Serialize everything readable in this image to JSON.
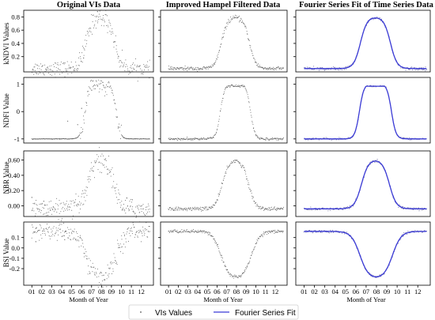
{
  "chart_data": {
    "type": "scatter",
    "title": "",
    "column_titles": [
      "Original VIs Data",
      "Improved Hampel Filtered Data",
      "Fourier Series Fit of Time Series Data"
    ],
    "xlabel": "Month of Year",
    "x_ticks": [
      "01",
      "02",
      "03",
      "04",
      "05",
      "06",
      "07",
      "08",
      "09",
      "10",
      "11",
      "12"
    ],
    "xlim": [
      0.5,
      12.9
    ],
    "rows": [
      {
        "name": "kNDVI",
        "ylabel": "kNDVI Values",
        "ylim": [
          -0.03,
          0.9
        ],
        "yticks": [
          {
            "v": 0.2,
            "label": "0.2"
          },
          {
            "v": 0.4,
            "label": "0.4"
          },
          {
            "v": 0.6,
            "label": "0.6"
          },
          {
            "v": 0.8,
            "label": "0.8"
          }
        ],
        "curve": {
          "base": 0.02,
          "peak": 0.8,
          "rise": 6.45,
          "fall": 9.35,
          "width": 0.32,
          "shape": "bell"
        },
        "noise_original": 0.055,
        "noise_filtered": 0.014,
        "outliers": [
          [
            7.6,
            0.88
          ],
          [
            6.2,
            0.18
          ]
        ]
      },
      {
        "name": "NDFI",
        "ylabel": "NDFI Value",
        "ylim": [
          -1.15,
          1.25
        ],
        "yticks": [
          {
            "v": -1,
            "label": "-1"
          },
          {
            "v": 0,
            "label": "0"
          },
          {
            "v": 1,
            "label": "1"
          }
        ],
        "curve": {
          "base": -1.0,
          "peak": 0.93,
          "rise": 6.35,
          "fall": 9.45,
          "width": 0.22,
          "shape": "plateau"
        },
        "noise_original": 0.11,
        "noise_filtered": 0.02,
        "outliers": [
          [
            4.6,
            -0.35
          ],
          [
            5.6,
            -0.48
          ],
          [
            6.0,
            0.12
          ]
        ]
      },
      {
        "name": "NBR",
        "ylabel": "NBR Value",
        "ylim": [
          -0.14,
          0.72
        ],
        "yticks": [
          {
            "v": 0.0,
            "label": "0.00"
          },
          {
            "v": 0.2,
            "label": "0.20"
          },
          {
            "v": 0.4,
            "label": "0.40"
          },
          {
            "v": 0.6,
            "label": "0.60"
          }
        ],
        "curve": {
          "base": -0.04,
          "peak": 0.61,
          "rise": 6.55,
          "fall": 9.25,
          "width": 0.34,
          "shape": "bell"
        },
        "noise_original": 0.06,
        "noise_filtered": 0.012,
        "outliers": [
          [
            1.0,
            0.11
          ],
          [
            2.2,
            0.06
          ],
          [
            11.1,
            0.08
          ]
        ]
      },
      {
        "name": "BSI",
        "ylabel": "BSI Value",
        "ylim": [
          -0.36,
          0.25
        ],
        "yticks": [
          {
            "v": 0.1,
            "label": "0.1"
          },
          {
            "v": 0.0,
            "label": "0.0"
          },
          {
            "v": -0.1,
            "label": "-0.1"
          },
          {
            "v": -0.2,
            "label": "-0.2"
          }
        ],
        "curve": {
          "base": 0.16,
          "peak": -0.3,
          "rise": 6.4,
          "fall": 9.55,
          "width": 0.42,
          "shape": "bell"
        },
        "noise_original": 0.04,
        "noise_filtered": 0.008,
        "outliers": [
          [
            1.4,
            0.06
          ],
          [
            4.3,
            0.08
          ]
        ]
      }
    ],
    "legend": {
      "position": "bottom-center",
      "entries": [
        "VIs Values",
        "Fourier Series Fit"
      ],
      "colors": {
        "points": "#555555",
        "fit": "#3b3bd6"
      }
    }
  }
}
